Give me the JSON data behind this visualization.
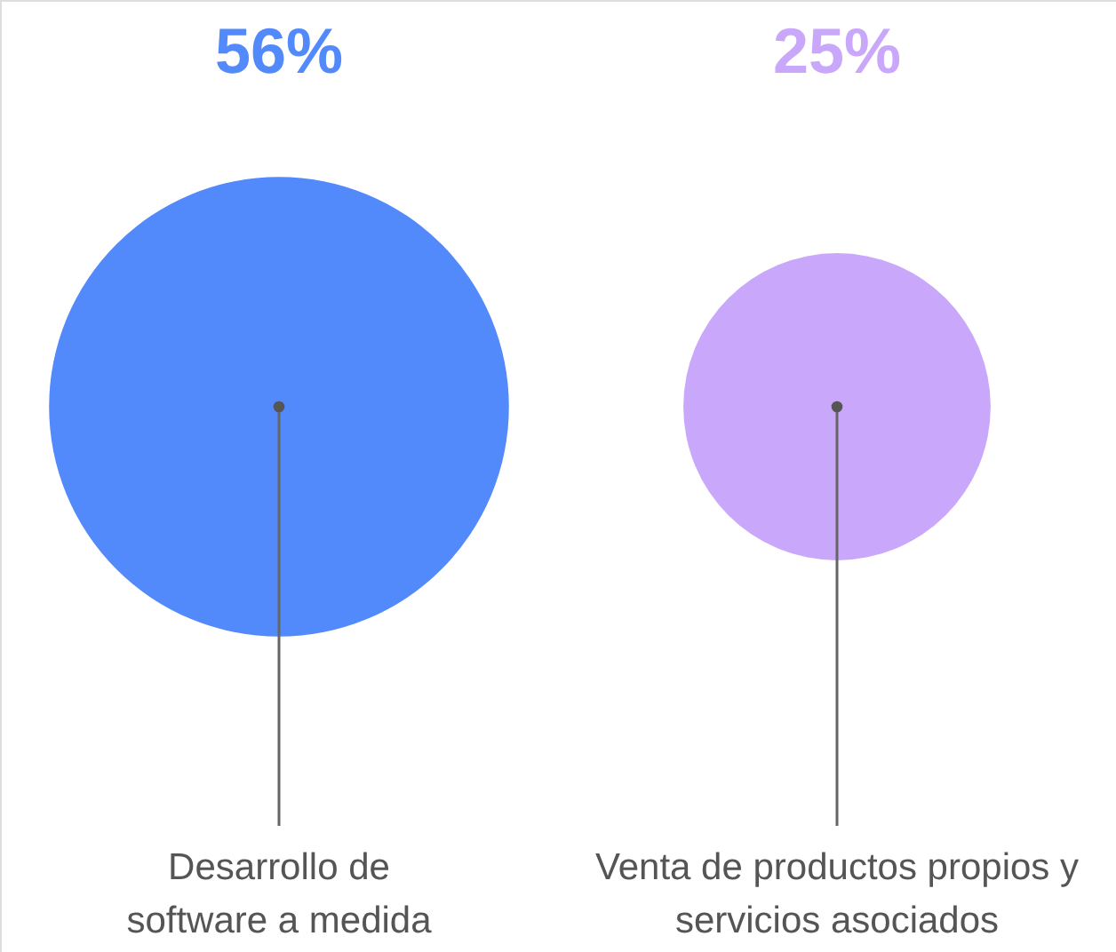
{
  "chart_data": {
    "type": "other",
    "categories": [
      "Desarrollo de\nsoftware a medida",
      "Venta de productos propios y\nservicios asociados"
    ],
    "values": [
      56,
      25
    ],
    "value_labels": [
      "56%",
      "25%"
    ],
    "colors": [
      "#5289fb",
      "#c9a8fb"
    ]
  }
}
